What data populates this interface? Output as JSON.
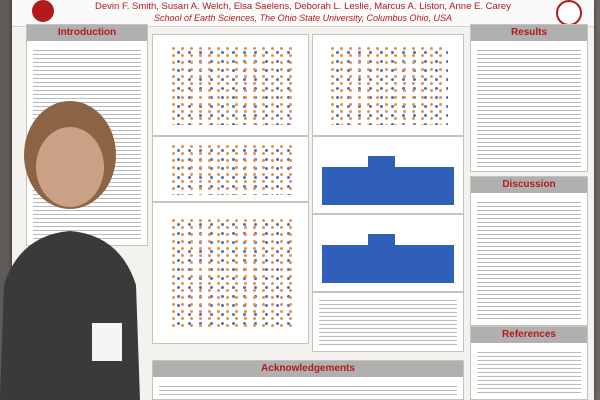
{
  "poster": {
    "authors": "Devin F. Smith, Susan A. Welch, Elsa Saelens, Deborah L. Leslie, Marcus A. Liston, Anne E. Carey",
    "affiliation": "School of Earth Sciences, The Ohio State University, Columbus Ohio, USA",
    "sections": {
      "introduction": "Introduction",
      "results": "Results",
      "discussion": "Discussion",
      "acknowledgements": "Acknowledgements",
      "references": "References"
    }
  },
  "colors": {
    "accent": "#b31b1b",
    "header_band": "#b0b0b0",
    "background": "#f4f2ee"
  },
  "person": {
    "description": "person-silhouette-placeholder"
  }
}
